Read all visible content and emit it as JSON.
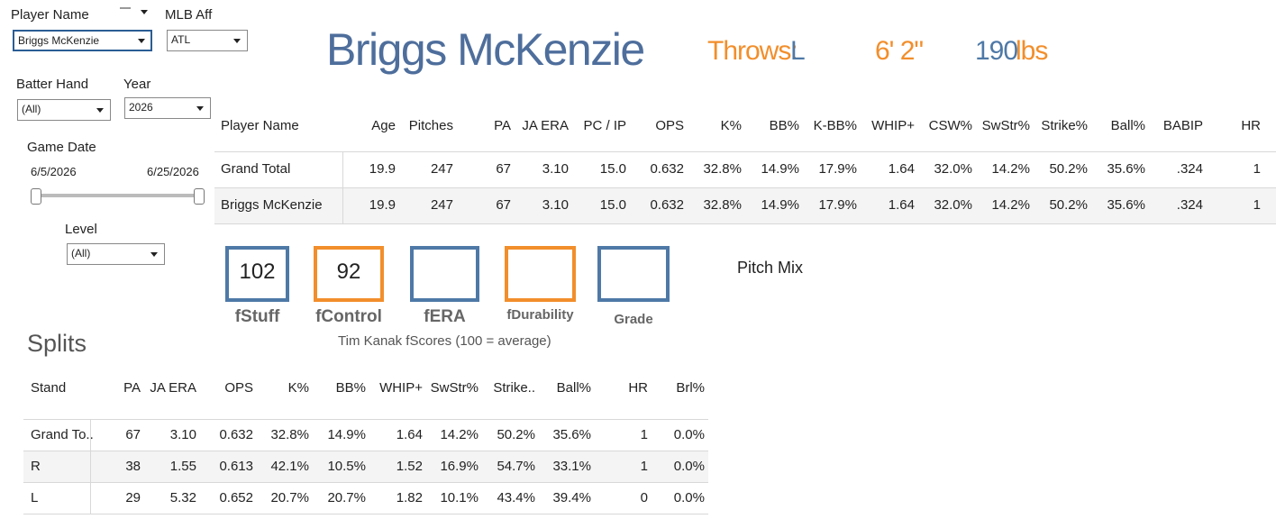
{
  "filters": {
    "player_name": {
      "label": "Player Name",
      "value": "Briggs McKenzie"
    },
    "mlb_aff": {
      "label": "MLB Aff",
      "value": "ATL"
    },
    "batter_hand": {
      "label": "Batter Hand",
      "value": "(All)"
    },
    "year": {
      "label": "Year",
      "value": "2026"
    },
    "game_date": {
      "label": "Game Date",
      "start": "6/5/2026",
      "end": "6/25/2026"
    },
    "level": {
      "label": "Level",
      "value": "(All)"
    }
  },
  "header": {
    "name": "Briggs McKenzie",
    "throws_label": "Throws:",
    "throws_value": "L",
    "height": "6' 2\"",
    "weight_value": "190",
    "weight_unit": "lbs"
  },
  "stats_table": {
    "columns": [
      "Player Name",
      "Age",
      "Pitches",
      "PA",
      "JA ERA",
      "PC / IP",
      "OPS",
      "K%",
      "BB%",
      "K-BB%",
      "WHIP+",
      "CSW%",
      "SwStr%",
      "Strike%",
      "Ball%",
      "BABIP",
      "HR"
    ],
    "rows": [
      [
        "Grand Total",
        "19.9",
        "247",
        "67",
        "3.10",
        "15.0",
        "0.632",
        "32.8%",
        "14.9%",
        "17.9%",
        "1.64",
        "32.0%",
        "14.2%",
        "50.2%",
        "35.6%",
        ".324",
        "1"
      ],
      [
        "Briggs McKenzie",
        "19.9",
        "247",
        "67",
        "3.10",
        "15.0",
        "0.632",
        "32.8%",
        "14.9%",
        "17.9%",
        "1.64",
        "32.0%",
        "14.2%",
        "50.2%",
        "35.6%",
        ".324",
        "1"
      ]
    ]
  },
  "scores": {
    "items": [
      {
        "label": "fStuff",
        "value": "102",
        "color": "#4e79a7"
      },
      {
        "label": "fControl",
        "value": "92",
        "color": "#f28e2b"
      },
      {
        "label": "fERA",
        "color": "#4e79a7"
      },
      {
        "label": "fDurability",
        "color": "#f28e2b"
      },
      {
        "label": "Grade",
        "color": "#4e79a7"
      }
    ],
    "caption": "Tim Kanak fScores (100 = average)"
  },
  "pitch_mix": {
    "title": "Pitch Mix"
  },
  "splits": {
    "title": "Splits",
    "columns": [
      "Stand",
      "PA",
      "JA ERA",
      "OPS",
      "K%",
      "BB%",
      "WHIP+",
      "SwStr%",
      "Strike..",
      "Ball%",
      "HR",
      "Brl%"
    ],
    "rows": [
      [
        "Grand To..",
        "67",
        "3.10",
        "0.632",
        "32.8%",
        "14.9%",
        "1.64",
        "14.2%",
        "50.2%",
        "35.6%",
        "1",
        "0.0%"
      ],
      [
        "R",
        "38",
        "1.55",
        "0.613",
        "42.1%",
        "10.5%",
        "1.52",
        "16.9%",
        "54.7%",
        "33.1%",
        "1",
        "0.0%"
      ],
      [
        "L",
        "29",
        "5.32",
        "0.652",
        "20.7%",
        "20.7%",
        "1.82",
        "10.1%",
        "43.4%",
        "39.4%",
        "0",
        "0.0%"
      ]
    ]
  }
}
